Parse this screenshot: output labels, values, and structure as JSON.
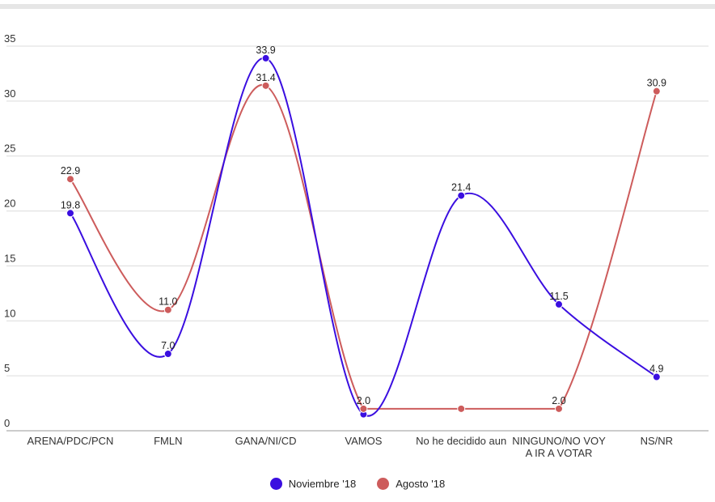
{
  "chart_data": {
    "type": "line",
    "title": "",
    "xlabel": "",
    "ylabel": "",
    "ylim": [
      0,
      35
    ],
    "yticks": [
      "0",
      "5",
      "10",
      "15",
      "20",
      "25",
      "30",
      "35"
    ],
    "grid": true,
    "legend_position": "bottom",
    "categories": [
      [
        "ARENA/PDC/PCN"
      ],
      [
        "FMLN"
      ],
      [
        "GANA/NI/CD"
      ],
      [
        "VAMOS"
      ],
      [
        "No he decidido aun"
      ],
      [
        "NINGUNO/NO VOY",
        "A IR A VOTAR"
      ],
      [
        "NS/NR"
      ]
    ],
    "series": [
      {
        "name": "Noviembre '18",
        "color": "#3a0ee0",
        "values": [
          19.8,
          7.0,
          33.9,
          1.5,
          21.4,
          11.5,
          4.9
        ],
        "labels": [
          "19.8",
          "7.0",
          "33.9",
          "",
          "21.4",
          "11.5",
          "4.9"
        ]
      },
      {
        "name": "Agosto '18",
        "color": "#cd5c5c",
        "values": [
          22.9,
          11.0,
          31.4,
          2.0,
          2.0,
          2.0,
          30.9
        ],
        "labels": [
          "22.9",
          "11.0",
          "31.4",
          "2.0",
          "",
          "2.0",
          "30.9"
        ]
      }
    ]
  }
}
